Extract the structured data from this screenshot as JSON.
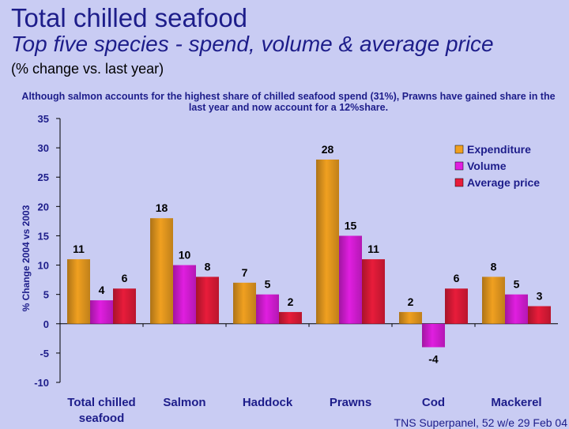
{
  "header": {
    "title": "Total chilled seafood",
    "subtitle": "Top five species - spend, volume & average price",
    "subnote": "(% change vs. last year)"
  },
  "annotation": "Although salmon accounts for the highest share of chilled seafood spend (31%), Prawns have gained share in the last year and now account for a 12%share.",
  "source": "TNS Superpanel, 52 w/e 29 Feb 04",
  "chart_data": {
    "type": "bar",
    "title": "",
    "xlabel": "",
    "ylabel": "% Change 2004 vs 2003",
    "ylim": [
      -10,
      35
    ],
    "yticks": [
      35,
      30,
      25,
      20,
      15,
      10,
      5,
      0,
      -5,
      -10
    ],
    "grid": false,
    "legend_position": "top-right",
    "categories": [
      "Total chilled seafood",
      "Salmon",
      "Haddock",
      "Prawns",
      "Cod",
      "Mackerel"
    ],
    "series": [
      {
        "name": "Expenditure",
        "color": "#f0a020",
        "values": [
          11,
          18,
          7,
          28,
          2,
          8
        ]
      },
      {
        "name": "Volume",
        "color": "#e01ee0",
        "values": [
          4,
          10,
          5,
          15,
          -4,
          5
        ]
      },
      {
        "name": "Average price",
        "color": "#e81c3a",
        "values": [
          6,
          8,
          2,
          11,
          6,
          3
        ]
      }
    ]
  }
}
